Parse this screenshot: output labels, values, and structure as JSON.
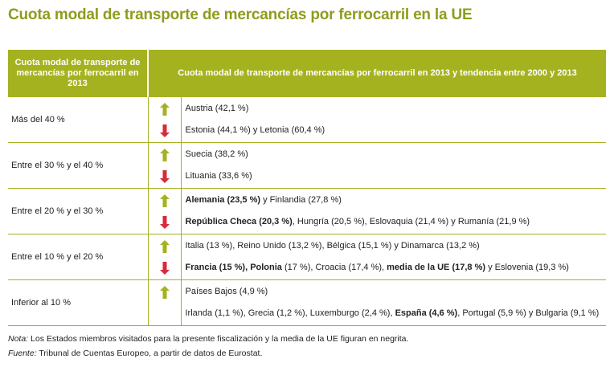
{
  "title": "Cuota modal de transporte de mercancías por ferrocarril en la UE",
  "header": {
    "col1": "Cuota modal de transporte de mercancías por ferrocarril en 2013",
    "col2": "Cuota modal de transporte de mercancías por ferrocarril en 2013 y tendencia entre 2000 y 2013"
  },
  "colors": {
    "up": "#a5b220",
    "down": "#d62c3c",
    "accent": "#8f9c1c"
  },
  "rows": [
    {
      "category": "Más del 40 %",
      "lines": [
        {
          "trend": "up",
          "segments": [
            {
              "t": "Austria (42,1 %)",
              "b": false
            }
          ]
        },
        {
          "trend": "down",
          "segments": [
            {
              "t": "Estonia (44,1 %) y Letonia (60,4 %)",
              "b": false
            }
          ]
        }
      ]
    },
    {
      "category": "Entre el 30 % y el 40 %",
      "lines": [
        {
          "trend": "up",
          "segments": [
            {
              "t": "Suecia (38,2 %)",
              "b": false
            }
          ]
        },
        {
          "trend": "down",
          "segments": [
            {
              "t": "Lituania (33,6 %)",
              "b": false
            }
          ]
        }
      ]
    },
    {
      "category": "Entre el 20 % y el 30 %",
      "lines": [
        {
          "trend": "up",
          "segments": [
            {
              "t": "Alemania (23,5 %)",
              "b": true
            },
            {
              "t": " y Finlandia (27,8 %)",
              "b": false
            }
          ]
        },
        {
          "trend": "down",
          "segments": [
            {
              "t": "República Checa (20,3 %)",
              "b": true
            },
            {
              "t": ", Hungría (20,5 %), Eslovaquia (21,4 %) y Rumanía (21,9 %)",
              "b": false
            }
          ]
        }
      ]
    },
    {
      "category": "Entre el 10 % y el 20 %",
      "lines": [
        {
          "trend": "up",
          "segments": [
            {
              "t": "Italia (13 %), Reino Unido (13,2 %), Bélgica (15,1 %) y Dinamarca (13,2 %)",
              "b": false
            }
          ]
        },
        {
          "trend": "down",
          "segments": [
            {
              "t": "Francia (15 %), Polonia",
              "b": true
            },
            {
              "t": " (17 %), Croacia (17,4 %), ",
              "b": false
            },
            {
              "t": "media de la UE (17,8 %)",
              "b": true
            },
            {
              "t": " y Eslovenia (19,3 %)",
              "b": false
            }
          ]
        }
      ]
    },
    {
      "category": "Inferior al 10 %",
      "lines": [
        {
          "trend": "up",
          "segments": [
            {
              "t": "Países Bajos (4,9 %)",
              "b": false
            }
          ]
        },
        {
          "trend": "none",
          "segments": [
            {
              "t": "Irlanda (1,1 %), Grecia (1,2 %), Luxemburgo (2,4 %), ",
              "b": false
            },
            {
              "t": "España (4,6 %)",
              "b": true
            },
            {
              "t": ", Portugal (5,9 %) y Bulgaria (9,1 %)",
              "b": false
            }
          ]
        }
      ]
    }
  ],
  "note": {
    "label": "Nota:",
    "text": " Los Estados miembros visitados para la presente fiscalización y la media de la UE figuran en negrita."
  },
  "source": {
    "label": "Fuente:",
    "text": " Tribunal de Cuentas Europeo, a partir de datos de Eurostat."
  }
}
